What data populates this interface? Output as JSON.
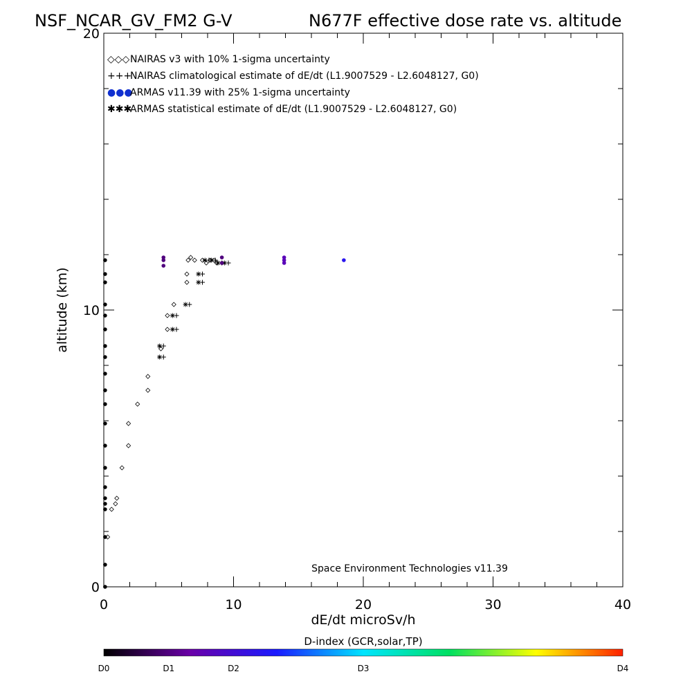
{
  "chart_data": {
    "type": "scatter",
    "title_left": "NSF_NCAR_GV_FM2 G-V",
    "title_right": "N677F  effective dose rate vs. altitude",
    "xlabel": "dE/dt microSv/h",
    "ylabel": "altitude (km)",
    "xlim": [
      0,
      40
    ],
    "ylim": [
      0,
      20
    ],
    "x_ticks": [
      0,
      10,
      20,
      30,
      40
    ],
    "y_ticks": [
      0,
      10,
      20
    ],
    "x_tick_labels": [
      "0",
      "10",
      "20",
      "30",
      "40"
    ],
    "y_tick_labels": [
      "0",
      "10",
      "20"
    ],
    "grid": false,
    "credit": "Space Environment Technologies v11.39",
    "legend": [
      {
        "symbol": "◇◇◇",
        "label": "NAIRAS v3 with 10% 1-sigma uncertainty",
        "color": "#000000"
      },
      {
        "symbol": "+++",
        "label": "NAIRAS climatological estimate of dE/dt (L1.9007529 - L2.6048127, G0)",
        "color": "#000000"
      },
      {
        "symbol": "●●●",
        "label": "ARMAS v11.39 with 25% 1-sigma uncertainty",
        "color": "#1030d0"
      },
      {
        "symbol": "✱✱✱",
        "label": "ARMAS statistical estimate of dE/dt (L1.9007529 - L2.6048127, G0)",
        "color": "#000000"
      }
    ],
    "series": [
      {
        "name": "NAIRAS v3 with 10% 1-sigma uncertainty",
        "marker": "diamond",
        "x": [
          0.3,
          0.6,
          0.9,
          1.0,
          1.4,
          1.9,
          1.9,
          2.6,
          3.4,
          3.4,
          4.4,
          4.9,
          4.9,
          5.4,
          6.4,
          6.4,
          6.5,
          6.7,
          7.0,
          7.6,
          7.9,
          8.2,
          8.5,
          8.7
        ],
        "y": [
          1.8,
          2.8,
          3.0,
          3.2,
          4.3,
          5.1,
          5.9,
          6.6,
          7.1,
          7.6,
          8.6,
          9.3,
          9.8,
          10.2,
          11.0,
          11.3,
          11.8,
          11.9,
          11.8,
          11.8,
          11.7,
          11.8,
          11.8,
          11.7
        ]
      },
      {
        "name": "NAIRAS climatological estimate of dE/dt (L1.9007529 - L2.6048127, G0)",
        "marker": "plus",
        "x": [
          4.6,
          4.6,
          5.6,
          5.6,
          6.6,
          7.6,
          7.6,
          8.1,
          8.6,
          9.1,
          9.6
        ],
        "y": [
          8.3,
          8.7,
          9.3,
          9.8,
          10.2,
          11.0,
          11.3,
          11.8,
          11.8,
          11.7,
          11.7
        ]
      },
      {
        "name": "ARMAS statistical estimate of dE/dt (L1.9007529 - L2.6048127, G0)",
        "marker": "star",
        "x": [
          4.3,
          4.3,
          5.3,
          5.3,
          6.3,
          7.3,
          7.3,
          7.8,
          8.3,
          8.8,
          9.3
        ],
        "y": [
          8.3,
          8.7,
          9.3,
          9.8,
          10.2,
          11.0,
          11.3,
          11.8,
          11.8,
          11.7,
          11.7
        ]
      },
      {
        "name": "ARMAS v11.39 with 25% 1-sigma uncertainty",
        "marker": "dot",
        "x": [
          0.1,
          0.1,
          0.1,
          0.1,
          0.1,
          0.1,
          0.1,
          0.1,
          0.1,
          0.1,
          0.1,
          0.1,
          0.1,
          0.1,
          0.1,
          0.1,
          0.1,
          0.1,
          0.1,
          0.1,
          0.1,
          4.6,
          4.6,
          4.6,
          9.1,
          9.1,
          13.9,
          13.9,
          13.9,
          18.5
        ],
        "y": [
          0.0,
          0.8,
          1.8,
          2.8,
          3.0,
          3.2,
          3.6,
          4.3,
          5.1,
          5.9,
          6.6,
          7.1,
          7.7,
          8.3,
          8.7,
          9.3,
          9.8,
          10.2,
          11.0,
          11.3,
          11.8,
          11.6,
          11.8,
          11.9,
          11.7,
          11.9,
          11.7,
          11.8,
          11.9,
          11.8
        ],
        "d_index": [
          0.0,
          0.0,
          0.0,
          0.0,
          0.0,
          0.0,
          0.0,
          0.0,
          0.0,
          0.0,
          0.0,
          0.0,
          0.0,
          0.0,
          0.0,
          0.0,
          0.0,
          0.0,
          0.0,
          0.0,
          0.0,
          0.5,
          0.5,
          0.5,
          0.5,
          0.5,
          0.8,
          0.8,
          0.8,
          1.2
        ]
      }
    ],
    "colorbar": {
      "title": "D-index (GCR,solar,TP)",
      "labels": [
        "D0",
        "D1",
        "D2",
        "D3",
        "D4"
      ],
      "positions": [
        0,
        0.5,
        1,
        2,
        4
      ],
      "max": 4,
      "stops": [
        "#000000",
        "#6a00a8",
        "#1a1aff",
        "#00e5ff",
        "#00e060",
        "#ffff00",
        "#ff2000"
      ]
    }
  }
}
